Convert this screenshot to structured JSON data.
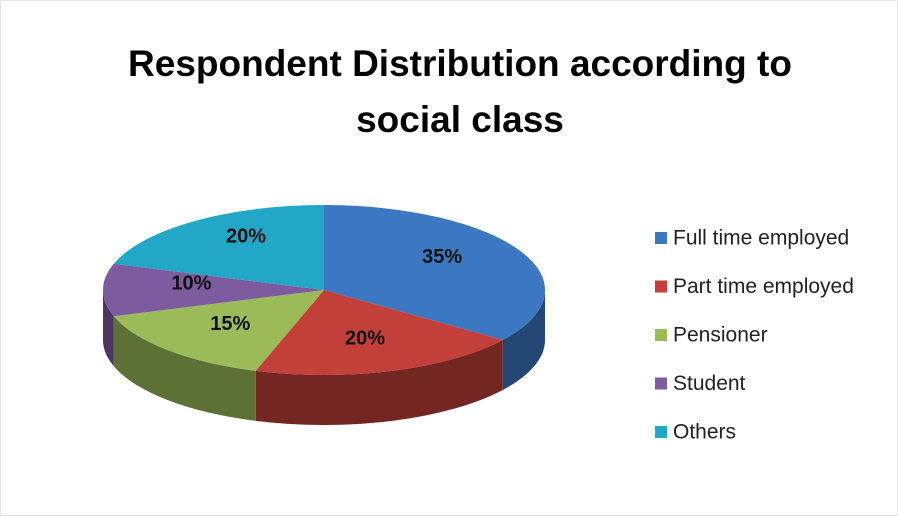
{
  "chart_data": {
    "type": "pie",
    "title": "Respondent Distribution according to social class",
    "categories": [
      "Full time employed",
      "Part time employed",
      "Pensioner",
      "Student",
      "Others"
    ],
    "values": [
      35,
      20,
      15,
      10,
      20
    ],
    "value_labels": [
      "35%",
      "20%",
      "15%",
      "10%",
      "20%"
    ],
    "colors": [
      "#3b78c1",
      "#c23f3a",
      "#9bbb59",
      "#7d5b9f",
      "#22a8c6"
    ],
    "legend": "right"
  }
}
